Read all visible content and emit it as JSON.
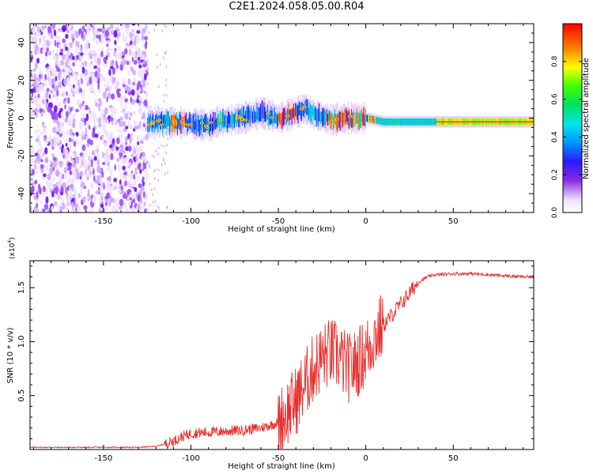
{
  "title": "C2E1.2024.058.05.00.R04",
  "chart_data": [
    {
      "type": "heatmap",
      "xlabel": "Height of straight line (km)",
      "ylabel": "Frequency (Hz)",
      "xlim": [
        -192,
        96
      ],
      "ylim": [
        -50,
        50
      ],
      "x_ticks": [
        -150,
        -100,
        -50,
        0,
        50
      ],
      "y_ticks": [
        -40,
        -20,
        0,
        20,
        40
      ],
      "colorbar": {
        "label": "Normalized spectral amplitude",
        "range": [
          0,
          1
        ],
        "ticks": [
          "0.0",
          "0.2",
          "0.4",
          "0.6",
          "0.8"
        ]
      },
      "noise_region_x": [
        -192,
        -125
      ],
      "signal_center_frequency": [
        [
          -125,
          -3
        ],
        [
          -115,
          -2
        ],
        [
          -100,
          -3
        ],
        [
          -90,
          -4
        ],
        [
          -85,
          -2
        ],
        [
          -70,
          0
        ],
        [
          -60,
          3
        ],
        [
          -50,
          0
        ],
        [
          -40,
          3
        ],
        [
          -35,
          5
        ],
        [
          -30,
          2
        ],
        [
          -20,
          -1
        ],
        [
          -10,
          0
        ],
        [
          0,
          0
        ],
        [
          10,
          -2
        ],
        [
          30,
          -2
        ],
        [
          60,
          -2
        ],
        [
          96,
          -2
        ]
      ],
      "peak_regions_x": [
        [
          -112,
          -104
        ],
        [
          -50,
          -40
        ],
        [
          -24,
          5
        ],
        [
          40,
          96
        ]
      ]
    },
    {
      "type": "line",
      "xlabel": "Height of straight line (km)",
      "ylabel": "SNR (10 * v/v)",
      "y_multiplier": "(x10",
      "y_multiplier_exp": "4",
      "xlim": [
        -192,
        96
      ],
      "ylim": [
        0,
        1.75
      ],
      "x_ticks": [
        -150,
        -100,
        -50,
        0,
        50
      ],
      "y_ticks": [
        "0.5",
        "1.0",
        "1.5"
      ],
      "series": [
        {
          "color": "#e8302e",
          "x": [
            -192,
            -160,
            -130,
            -120,
            -115,
            -110,
            -105,
            -100,
            -90,
            -80,
            -70,
            -60,
            -50,
            -45,
            -40,
            -35,
            -30,
            -25,
            -20,
            -15,
            -10,
            -5,
            0,
            5,
            10,
            15,
            20,
            25,
            30,
            35,
            40,
            50,
            60,
            70,
            80,
            90,
            96
          ],
          "y": [
            0.02,
            0.02,
            0.02,
            0.03,
            0.05,
            0.08,
            0.12,
            0.15,
            0.16,
            0.17,
            0.18,
            0.2,
            0.25,
            0.35,
            0.45,
            0.6,
            0.75,
            0.85,
            0.9,
            0.85,
            0.75,
            0.8,
            0.9,
            1.05,
            1.15,
            1.25,
            1.35,
            1.45,
            1.55,
            1.6,
            1.62,
            1.63,
            1.63,
            1.62,
            1.61,
            1.6,
            1.6
          ]
        }
      ]
    }
  ]
}
